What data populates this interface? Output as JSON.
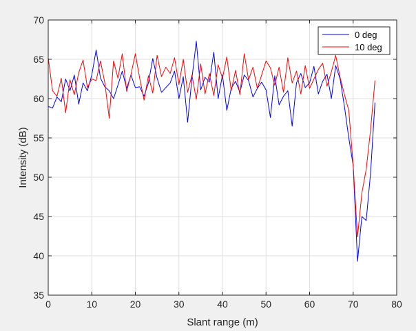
{
  "chart_data": {
    "type": "line",
    "xlabel": "Slant range (m)",
    "ylabel": "Intensity (dB)",
    "xlim": [
      0,
      80
    ],
    "ylim": [
      35,
      70
    ],
    "xticks": [
      0,
      10,
      20,
      30,
      40,
      50,
      60,
      70,
      80
    ],
    "yticks": [
      35,
      40,
      45,
      50,
      55,
      60,
      65,
      70
    ],
    "xtick_labels": [
      "0",
      "10",
      "20",
      "30",
      "40",
      "50",
      "60",
      "70",
      "80"
    ],
    "ytick_labels": [
      "35",
      "40",
      "45",
      "50",
      "55",
      "60",
      "65",
      "70"
    ],
    "grid": true,
    "legend_position": "top-right",
    "series": [
      {
        "name": "0 deg",
        "color": "#0000ff",
        "x": [
          0,
          1,
          2,
          3,
          4,
          5,
          6,
          7,
          8,
          9,
          10,
          11,
          12,
          13,
          14,
          15,
          16,
          17,
          18,
          19,
          20,
          21,
          22,
          23,
          24,
          25,
          26,
          27,
          28,
          29,
          30,
          31,
          32,
          33,
          34,
          35,
          36,
          37,
          38,
          39,
          40,
          41,
          42,
          43,
          44,
          45,
          46,
          47,
          48,
          49,
          50,
          51,
          52,
          53,
          54,
          55,
          56,
          57,
          58,
          59,
          60,
          61,
          62,
          63,
          64,
          65,
          66,
          67,
          68,
          69,
          70,
          71,
          72,
          73,
          74,
          75
        ],
        "y": [
          59,
          58.8,
          60.2,
          59.6,
          62.5,
          61,
          63,
          59.3,
          62,
          61,
          63,
          66.2,
          62.6,
          61.5,
          61,
          60,
          61.7,
          63.5,
          61.3,
          63,
          61.4,
          61.5,
          60.3,
          62,
          65.1,
          62.6,
          60.8,
          61.4,
          62,
          63.5,
          60,
          62.8,
          57,
          62.6,
          67.3,
          61.1,
          62.7,
          62.1,
          65.9,
          60,
          63,
          58.5,
          61.3,
          62.2,
          60.8,
          63,
          62.3,
          60.2,
          61.3,
          62.1,
          61.1,
          57.6,
          62.9,
          59.2,
          60.3,
          61,
          56.5,
          62,
          63.2,
          61.4,
          62,
          64.1,
          60.6,
          62.2,
          63.1,
          60,
          64.2,
          62.5,
          59,
          55,
          51.5,
          39.3,
          45,
          44.5,
          50.5,
          59.5
        ]
      },
      {
        "name": "10 deg",
        "color": "#ff0000",
        "x": [
          0,
          1,
          2,
          3,
          4,
          5,
          6,
          7,
          8,
          9,
          10,
          11,
          12,
          13,
          14,
          15,
          16,
          17,
          18,
          19,
          20,
          21,
          22,
          23,
          24,
          25,
          26,
          27,
          28,
          29,
          30,
          31,
          32,
          33,
          34,
          35,
          36,
          37,
          38,
          39,
          40,
          41,
          42,
          43,
          44,
          45,
          46,
          47,
          48,
          49,
          50,
          51,
          52,
          53,
          54,
          55,
          56,
          57,
          58,
          59,
          60,
          61,
          62,
          63,
          64,
          65,
          66,
          67,
          68,
          69,
          70,
          71,
          72,
          73,
          74,
          75
        ],
        "y": [
          65.2,
          61,
          60.3,
          62.6,
          58.2,
          62.4,
          60.5,
          63.3,
          64.9,
          61.4,
          62.5,
          62.3,
          64.8,
          62,
          57.5,
          64.8,
          62.6,
          65.7,
          60.9,
          63.1,
          65.7,
          62.6,
          59.8,
          62.9,
          60.7,
          65.5,
          62.8,
          64,
          63.2,
          65.2,
          61.8,
          65,
          60.8,
          63,
          59.9,
          64.4,
          60.6,
          63.2,
          60.4,
          64.3,
          62.6,
          65.3,
          61,
          63.6,
          60.5,
          65.7,
          62.4,
          64,
          61.3,
          63,
          64.8,
          63.9,
          61.7,
          64,
          60.8,
          65.2,
          62,
          63.5,
          60.6,
          64.2,
          61.3,
          62.5,
          63.7,
          64.5,
          61.6,
          63.4,
          65.5,
          62.7,
          60.5,
          58.5,
          51.5,
          42.4,
          48,
          51,
          56,
          62.3
        ]
      }
    ]
  }
}
